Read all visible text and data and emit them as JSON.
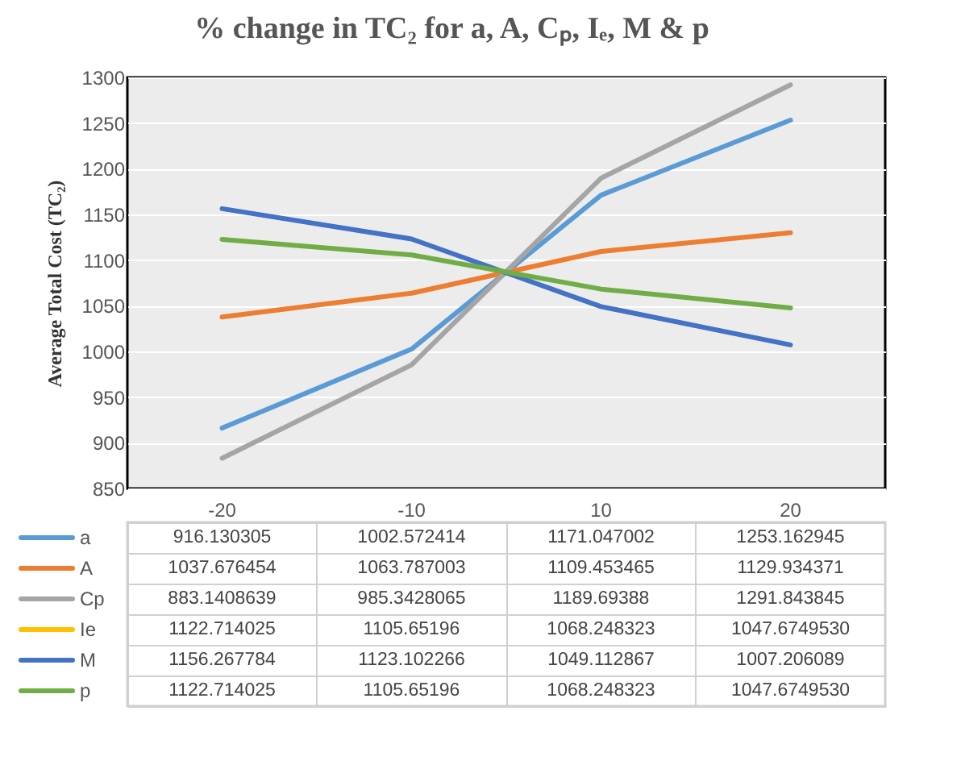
{
  "chart_data": {
    "type": "line",
    "title": "% change in TC₂ for a, A, Cₚ, Iₑ, M & p",
    "ylabel": "Average  Total Cost (TC₂)",
    "categories": [
      "-20",
      "-10",
      "10",
      "20"
    ],
    "series": [
      {
        "name": "a",
        "color": "#5b9bd5",
        "values": [
          916.130305,
          1002.572414,
          1171.047002,
          1253.162945
        ],
        "value_labels": [
          "916.130305",
          "1002.572414",
          "1171.047002",
          "1253.162945"
        ]
      },
      {
        "name": "A",
        "color": "#ed7d31",
        "values": [
          1037.676454,
          1063.787003,
          1109.453465,
          1129.934371
        ],
        "value_labels": [
          "1037.676454",
          "1063.787003",
          "1109.453465",
          "1129.934371"
        ]
      },
      {
        "name": "Cp",
        "color": "#a5a5a5",
        "values": [
          883.1408639,
          985.3428065,
          1189.69388,
          1291.843845
        ],
        "value_labels": [
          "883.1408639",
          "985.3428065",
          "1189.69388",
          "1291.843845"
        ]
      },
      {
        "name": "Ie",
        "color": "#ffc000",
        "values": [
          null,
          null,
          null,
          null
        ],
        "value_labels": [
          "1122.714025",
          "1105.65196",
          "1068.248323",
          "1047.6749530"
        ]
      },
      {
        "name": "M",
        "color": "#4472c4",
        "values": [
          1156.267784,
          1123.102266,
          1049.112867,
          1007.206089
        ],
        "value_labels": [
          "1156.267784",
          "1123.102266",
          "1049.112867",
          "1007.206089"
        ]
      },
      {
        "name": "p",
        "color": "#70ad47",
        "values": [
          1122.714025,
          1105.65196,
          1068.248323,
          1047.674953
        ],
        "value_labels": [
          "1122.714025",
          "1105.65196",
          "1068.248323",
          "1047.6749530"
        ]
      }
    ],
    "ylim": [
      850,
      1300
    ],
    "yticks": [
      850,
      900,
      950,
      1000,
      1050,
      1100,
      1150,
      1200,
      1250,
      1300
    ],
    "grid": "y",
    "legend": "bottom left"
  }
}
